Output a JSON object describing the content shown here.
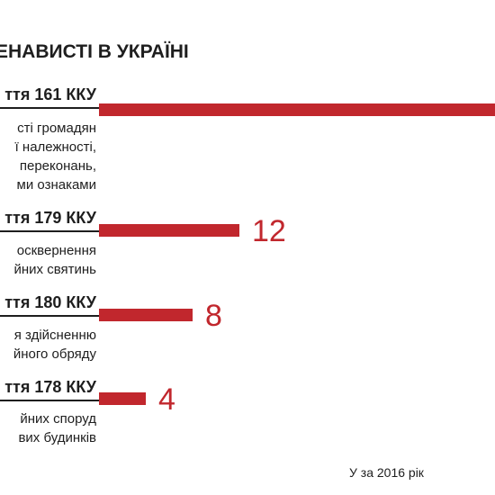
{
  "chart_data": {
    "type": "bar",
    "orientation": "horizontal",
    "title": "ЕНАВИСТІ В УКРАЇНІ",
    "categories": [
      "ття 161 ККУ",
      "ття 179 ККУ",
      "ття 180 ККУ",
      "ття 178 ККУ"
    ],
    "descriptions": [
      [
        "сті громадян",
        "ї належності,",
        "переконань,",
        "ми ознаками"
      ],
      [
        "осквернення",
        "йних святинь"
      ],
      [
        "я здійсненню",
        "йного обряду"
      ],
      [
        "йних споруд",
        "вих будинків"
      ]
    ],
    "values": [
      null,
      12,
      8,
      4
    ],
    "value_labels": [
      "",
      "12",
      "8",
      "4"
    ],
    "source": "У за 2016 рік",
    "bar_color": "#c1272d",
    "xlim": [
      0,
      35
    ]
  }
}
